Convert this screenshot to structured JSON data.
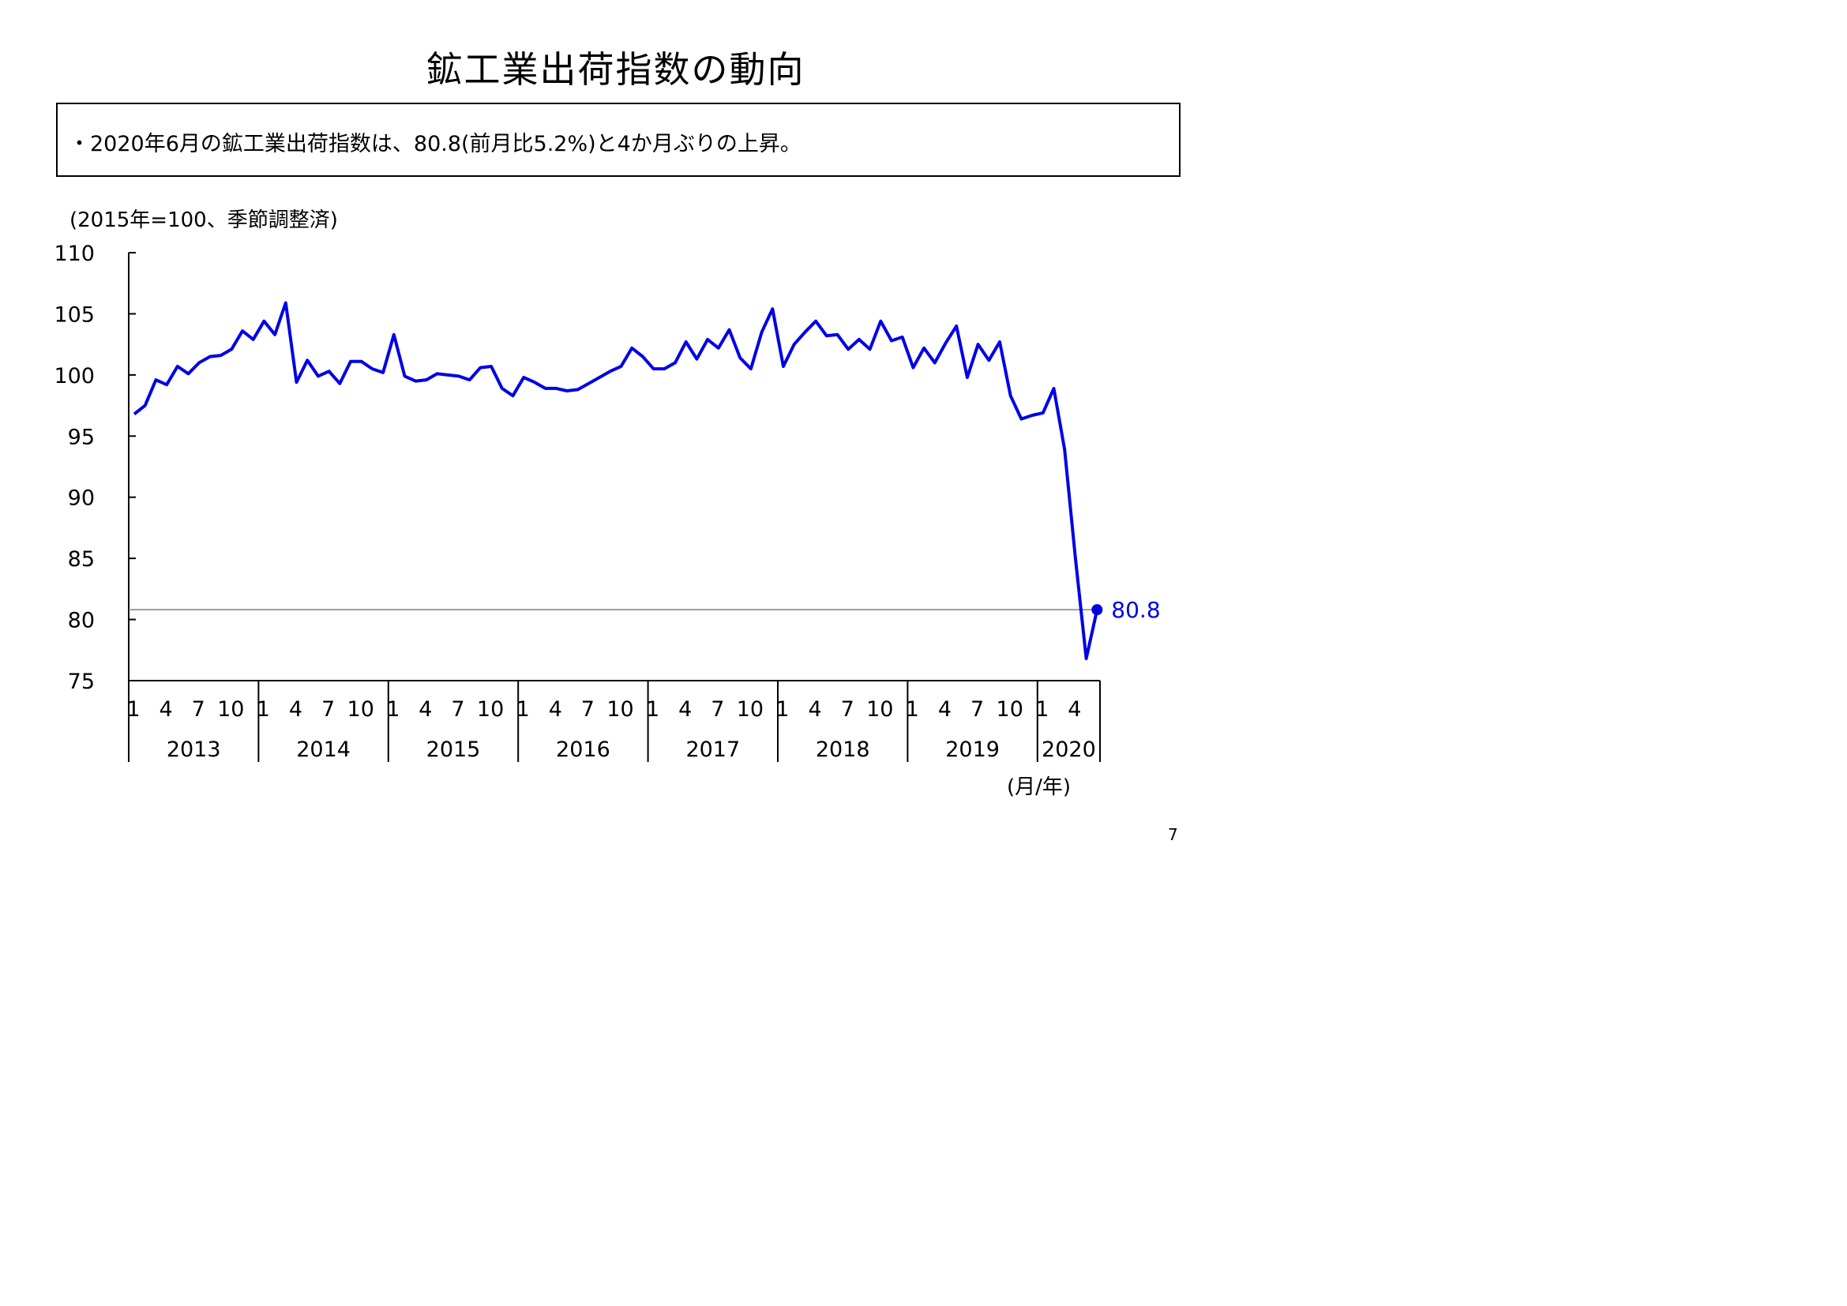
{
  "title": "鉱工業出荷指数の動向",
  "summary": "・2020年6月の鉱工業出荷指数は、80.8(前月比5.2%)と4か月ぶりの上昇。",
  "page_number": "7",
  "colors": {
    "series": "#0000e6",
    "reference_line": "#808080",
    "axis": "#000000",
    "annotation": "#0000e6"
  },
  "chart_data": {
    "type": "line",
    "ylabel": "(2015年=100、季節調整済)",
    "xlabel": "(月/年)",
    "ylim": [
      75,
      110
    ],
    "yticks": [
      "110",
      "105",
      "100",
      "95",
      "90",
      "85",
      "80",
      "75"
    ],
    "month_ticks": [
      "1",
      "4",
      "7",
      "10"
    ],
    "month_ticks_last_year": [
      "1",
      "4"
    ],
    "years": [
      "2013",
      "2014",
      "2015",
      "2016",
      "2017",
      "2018",
      "2019",
      "2020"
    ],
    "series": [
      {
        "values": [
          96.8,
          97.5,
          99.6,
          99.2,
          100.7,
          100.1,
          101.0,
          101.5,
          101.6,
          102.1,
          103.6,
          102.9,
          104.4,
          103.3,
          105.9,
          99.4,
          101.2,
          99.9,
          100.3,
          99.3,
          101.1,
          101.1,
          100.5,
          100.2,
          103.3,
          99.9,
          99.5,
          99.6,
          100.1,
          100.0,
          99.9,
          99.6,
          100.6,
          100.7,
          98.9,
          98.3,
          99.8,
          99.4,
          98.9,
          98.9,
          98.7,
          98.8,
          99.3,
          99.8,
          100.3,
          100.7,
          102.2,
          101.5,
          100.5,
          100.5,
          101.0,
          102.7,
          101.3,
          102.9,
          102.2,
          103.7,
          101.4,
          100.5,
          103.5,
          105.4,
          100.7,
          102.5,
          103.5,
          104.4,
          103.2,
          103.3,
          102.1,
          102.9,
          102.1,
          104.4,
          102.8,
          103.1,
          100.6,
          102.2,
          101.0,
          102.6,
          104.0,
          99.8,
          102.5,
          101.2,
          102.7,
          98.3,
          96.4,
          96.7,
          96.9,
          98.9,
          93.9,
          85.0,
          76.8,
          80.8
        ]
      }
    ],
    "reference_value": 80.8,
    "annotation": "80.8"
  }
}
